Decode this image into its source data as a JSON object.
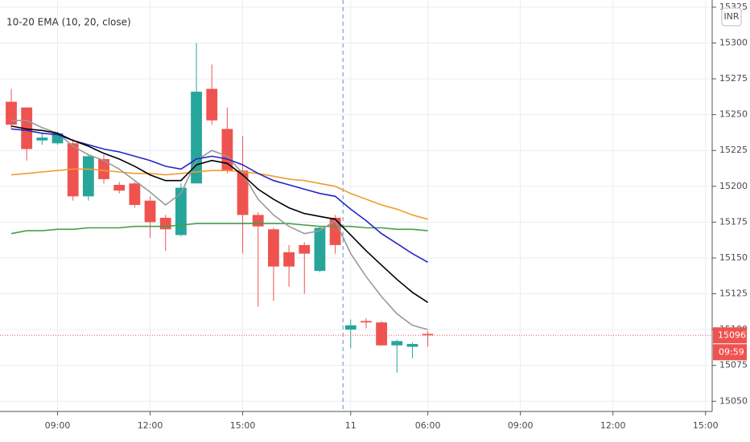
{
  "chart_data": {
    "type": "candlestick",
    "title": "10-20 EMA (10, 20, close)",
    "currency": "INR",
    "x": [
      0,
      1,
      2,
      3,
      4,
      5,
      6,
      7,
      8,
      9,
      10,
      11,
      12,
      13,
      14,
      15,
      16,
      17,
      18,
      19,
      20,
      21,
      22,
      23,
      24,
      25,
      26,
      27
    ],
    "open": [
      15259,
      15255,
      15232,
      15230,
      15230,
      15193,
      15219,
      15201,
      15202,
      15190,
      15178,
      15166,
      15202,
      15268,
      15240,
      15211,
      15180,
      15170,
      15154,
      15159,
      15141,
      15178,
      15100,
      15106,
      15105,
      15089,
      15088,
      15097
    ],
    "high": [
      15268,
      15255,
      15237,
      15238,
      15233,
      15222,
      15222,
      15203,
      15203,
      15193,
      15180,
      15202,
      15300,
      15285,
      15255,
      15235,
      15182,
      15171,
      15159,
      15161,
      15172,
      15180,
      15107,
      15108,
      15106,
      15093,
      15091,
      15099
    ],
    "low": [
      15240,
      15218,
      15229,
      15229,
      15190,
      15190,
      15202,
      15195,
      15185,
      15164,
      15155,
      15165,
      15202,
      15243,
      15209,
      15153,
      15116,
      15120,
      15130,
      15125,
      15140,
      15153,
      15087,
      15101,
      15089,
      15070,
      15080,
      15088
    ],
    "close": [
      15243,
      15226,
      15234,
      15237,
      15193,
      15221,
      15205,
      15197,
      15187,
      15175,
      15170,
      15199,
      15266,
      15246,
      15211,
      15180,
      15172,
      15144,
      15144,
      15153,
      15171,
      15159,
      15103,
      15105,
      15089,
      15092,
      15090,
      15096
    ],
    "up_color": "#26a69a",
    "down_color": "#ef5350",
    "lines": [
      {
        "color": "#f59a2f",
        "values": [
          15208,
          15209,
          15210,
          15211,
          15212,
          15212,
          15211,
          15210,
          15209,
          15209,
          15208,
          15209,
          15210,
          15211,
          15211,
          15210,
          15209,
          15207,
          15205,
          15204,
          15202,
          15200,
          15195,
          15191,
          15187,
          15184,
          15180,
          15177
        ]
      },
      {
        "color": "#43a047",
        "values": [
          15167,
          15169,
          15169,
          15170,
          15170,
          15171,
          15171,
          15171,
          15172,
          15172,
          15172,
          15173,
          15174,
          15174,
          15174,
          15174,
          15174,
          15174,
          15174,
          15173,
          15172,
          15172,
          15172,
          15171,
          15171,
          15170,
          15170,
          15169
        ]
      },
      {
        "color": "#999999",
        "values": [
          15246,
          15246,
          15241,
          15237,
          15228,
          15222,
          15218,
          15212,
          15204,
          15196,
          15187,
          15195,
          15218,
          15225,
          15221,
          15209,
          15191,
          15180,
          15172,
          15167,
          15169,
          15176,
          15153,
          15137,
          15123,
          15111,
          15103,
          15100
        ]
      },
      {
        "color": "#2525c8",
        "values": [
          15240,
          15239,
          15237,
          15236,
          15232,
          15229,
          15226,
          15224,
          15221,
          15218,
          15214,
          15212,
          15219,
          15221,
          15219,
          15215,
          15209,
          15204,
          15201,
          15198,
          15195,
          15193,
          15184,
          15176,
          15167,
          15160,
          15153,
          15147
        ]
      },
      {
        "color": "#000000",
        "values": [
          15242,
          15240,
          15239,
          15237,
          15232,
          15228,
          15223,
          15219,
          15214,
          15208,
          15204,
          15204,
          15215,
          15218,
          15216,
          15208,
          15198,
          15191,
          15185,
          15181,
          15179,
          15177,
          15166,
          15155,
          15145,
          15135,
          15126,
          15119
        ]
      }
    ],
    "xlim": [
      -0.73,
      45.17
    ],
    "xticks": [
      {
        "value": 3,
        "label": "09:00"
      },
      {
        "value": 9,
        "label": "12:00"
      },
      {
        "value": 15,
        "label": "15:00"
      },
      {
        "value": 22,
        "label": "11"
      },
      {
        "value": 27,
        "label": "06:00"
      },
      {
        "value": 33,
        "label": "09:00"
      },
      {
        "value": 39,
        "label": "12:00"
      },
      {
        "value": 45,
        "label": "15:00"
      }
    ],
    "ylim": [
      15044,
      15330
    ],
    "yticks": [
      15050,
      15075,
      15100,
      15125,
      15150,
      15175,
      15200,
      15225,
      15250,
      15275,
      15300,
      15325
    ],
    "grid": true,
    "last_price": 15096,
    "countdown": "09:59"
  }
}
